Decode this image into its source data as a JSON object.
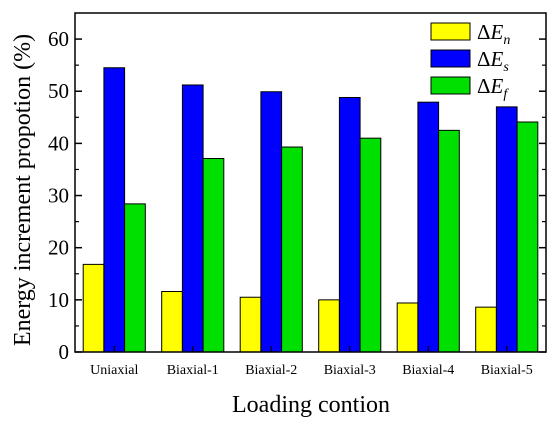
{
  "chart_data": {
    "type": "bar",
    "xlabel": "Loading contion",
    "ylabel": "Energy increment propotion (%)",
    "categories": [
      "Uniaxial",
      "Biaxial-1",
      "Biaxial-2",
      "Biaxial-3",
      "Biaxial-4",
      "Biaxial-5"
    ],
    "ylim": [
      0,
      65
    ],
    "yticks": [
      0,
      10,
      20,
      30,
      40,
      50,
      60
    ],
    "grid": false,
    "legend_position": "top-right",
    "series": [
      {
        "name": "ΔE_n",
        "symbol": "E",
        "subscript": "n",
        "color": "#ffff00",
        "values": [
          16.8,
          11.6,
          10.5,
          10.0,
          9.4,
          8.6
        ]
      },
      {
        "name": "ΔE_s",
        "symbol": "E",
        "subscript": "s",
        "color": "#0000ff",
        "values": [
          54.5,
          51.2,
          49.9,
          48.8,
          47.9,
          47.0
        ]
      },
      {
        "name": "ΔE_f",
        "symbol": "E",
        "subscript": "f",
        "color": "#00e000",
        "values": [
          28.4,
          37.1,
          39.3,
          41.0,
          42.5,
          44.1
        ]
      }
    ]
  }
}
